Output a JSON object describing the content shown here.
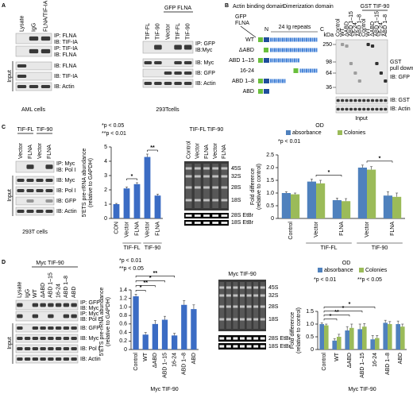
{
  "panel_a": {
    "letter": "A",
    "left": {
      "lanes": [
        "Lysate",
        "IgG",
        "FLNA/TIF-IA"
      ],
      "ip1": "IP: FLNA",
      "ib1": "IB: TIF-IA",
      "ip2": "IP: TIF-IA",
      "ib2": "IB: FLNA",
      "input": "Input",
      "input_rows": [
        "IB: FLNA",
        "IB: TIF-IA",
        "IB: Actin"
      ],
      "cells": "AML cells"
    },
    "right": {
      "header": "GFP FLNA",
      "lanes": [
        "TIF-FL",
        "TIF-90",
        "Vector",
        "TIF-FL",
        "TIF-90"
      ],
      "ip": "IP: GFP",
      "ib": "IB:Myc",
      "input_rows": [
        "IB: Myc",
        "IB: GFP",
        "IB: Actin"
      ],
      "cells": "293Tcells"
    }
  },
  "panel_b": {
    "letter": "B",
    "abd": "Actin binding domain",
    "dim": "Dimerization domain",
    "gfp": "GFP",
    "flna": "FLNA",
    "n": "N",
    "c": "C",
    "repeats": "24 Ig repeats",
    "constructs": [
      "WT",
      "ΔABD",
      "ABD 1–15",
      "16-24",
      "ABD 1–8",
      "ABD"
    ],
    "kda": "kDa",
    "header": "GST TIF-90",
    "lanes": [
      "Control",
      "WT",
      "ΔABD",
      "ABD 1–15",
      "16-24",
      "ABD 1–8",
      "Control",
      "WT",
      "ΔABD",
      "ABD 1–15",
      "16-24",
      "ABD 1–8"
    ],
    "markers": [
      250,
      98,
      64,
      36
    ],
    "pull": [
      "GST",
      "pull down",
      "IB: GFP"
    ],
    "input": "Input",
    "input_rows": [
      "IB: GST",
      "IB: Actin"
    ]
  },
  "panel_c": {
    "letter": "C",
    "blot": {
      "groups": [
        "TIF-FL",
        "TIF-90"
      ],
      "lanes": [
        "Vector",
        "FLNA",
        "Vector",
        "FLNA"
      ],
      "ip": "IP: Myc",
      "ib": "IB: Pol I",
      "input": "Input",
      "input_rows": [
        "IB: Myc",
        "IB: Pol I",
        "IB: GFP",
        "IB: Actin"
      ],
      "cells": "293T cells"
    },
    "chart": {
      "type": "bar",
      "notes": [
        "*p < 0.05",
        "**p < 0.01"
      ],
      "ylabel": [
        "5'ETS pre-rRNA abundance",
        "(relative to GAPDH)"
      ],
      "categories": [
        "CON",
        "Vector",
        "FLNA",
        "Vector",
        "FLNA"
      ],
      "groups": [
        "TIF-FL",
        "TIF-90"
      ],
      "values": [
        1.0,
        2.1,
        2.4,
        4.3,
        1.6
      ],
      "errors": [
        0.05,
        0.1,
        0.1,
        0.2,
        0.1
      ],
      "color": "#3b6cc4",
      "ylim": [
        0,
        5
      ],
      "yticks": [
        0,
        1,
        2,
        3,
        4,
        5
      ],
      "stars": [
        "*",
        "**"
      ]
    },
    "gel": {
      "groups": [
        "TIF-FL",
        "TIF-90"
      ],
      "lanes": [
        "Control",
        "Vector",
        "FLNA",
        "Vector",
        "FLNA"
      ],
      "bands": [
        "45S",
        "32S",
        "28S",
        "18S"
      ],
      "etbr": [
        "28S EtBr",
        "18S EtBr"
      ]
    },
    "chart2": {
      "type": "grouped_bar",
      "legend_title": "OD",
      "notes": [
        "*p < 0.01"
      ],
      "ylabel": [
        "Fold difference",
        "(relative to control)"
      ],
      "categories": [
        "Control",
        "Vector",
        "FLNA",
        "Vector",
        "FLNA"
      ],
      "groups": [
        "TIF-FL",
        "TIF-90"
      ],
      "series": [
        {
          "name": "absorbance",
          "color": "#4f81bd",
          "values": [
            1.0,
            1.45,
            0.72,
            2.0,
            0.9
          ],
          "errors": [
            0.05,
            0.1,
            0.08,
            0.1,
            0.15
          ]
        },
        {
          "name": "Colonies",
          "color": "#9bbb59",
          "values": [
            0.95,
            1.38,
            0.68,
            1.92,
            0.85
          ],
          "errors": [
            0.05,
            0.12,
            0.1,
            0.12,
            0.15
          ]
        }
      ],
      "ylim": [
        0,
        2.5
      ],
      "yticks": [
        0,
        0.5,
        {
          "value": 1,
          "label": "1.0"
        },
        1.5,
        {
          "value": 2,
          "label": "2.0"
        },
        2.5
      ],
      "stars": [
        "*",
        "*"
      ]
    }
  },
  "panel_d": {
    "letter": "D",
    "blot": {
      "header": "Myc TIF-90",
      "lanes": [
        "Lysate",
        "IgG",
        "WT",
        "ΔABD",
        "ABD 1–15",
        "16-24",
        "ABD 1–8",
        "ABD"
      ],
      "ip1": "IP: GFP",
      "ib1": "IB: Myc",
      "ip2": "IP: Myc",
      "ib2": "IB: Pol I",
      "input": "Input",
      "input_rows": [
        "IB: GFP",
        "IB: Myc",
        "IB: Pol I",
        "IB: Actin"
      ]
    },
    "chart": {
      "type": "bar",
      "notes": [
        "*p < 0.01",
        "**p < 0.05"
      ],
      "ylabel": [
        "5'ETS pre-rRNA abundance",
        "(relative to GAPDH)"
      ],
      "categories": [
        "Control",
        "WT",
        "ΔABD",
        "ABD 1–15",
        "16-24",
        "ABD 1–8",
        "ABD"
      ],
      "group": "Myc TIF-90",
      "values": [
        1.25,
        0.35,
        0.6,
        0.7,
        0.33,
        1.05,
        0.95
      ],
      "errors": [
        0.05,
        0.05,
        0.08,
        0.08,
        0.05,
        0.1,
        0.1
      ],
      "color": "#3b6cc4",
      "ylim": [
        0,
        1.4
      ],
      "yticks": [
        0,
        0.2,
        0.4,
        0.6,
        0.8,
        {
          "value": 1,
          "label": "1.0"
        },
        1.2,
        1.4
      ],
      "stars": [
        "*",
        "**",
        "*",
        "**"
      ]
    },
    "gel": {
      "header": "Myc TIF-90",
      "bands": [
        "45S",
        "32S",
        "28S",
        "18S"
      ],
      "etbr": [
        "28S EtBr",
        "18S EtBr"
      ]
    },
    "chart2": {
      "type": "grouped_bar",
      "legend_title": "OD",
      "notes": [
        "*p < 0.01",
        "**p < 0.05"
      ],
      "ylabel": [
        "Fold difference",
        "(relative to control)"
      ],
      "categories": [
        "Control",
        "WT",
        "ΔABD",
        "ABD 1–15",
        "16-24",
        "ABD 1–8",
        "ABD"
      ],
      "group": "Myc TIF-90",
      "series": [
        {
          "name": "absorbance",
          "color": "#4f81bd",
          "values": [
            1.0,
            0.35,
            0.75,
            0.8,
            0.4,
            1.05,
            1.0
          ],
          "errors": [
            0.05,
            0.08,
            0.15,
            0.2,
            0.15,
            0.1,
            0.12
          ]
        },
        {
          "name": "Colonies",
          "color": "#9bbb59",
          "values": [
            0.95,
            0.5,
            0.85,
            0.9,
            0.45,
            1.0,
            0.9
          ],
          "errors": [
            0.05,
            0.1,
            0.15,
            0.12,
            0.1,
            0.1,
            0.1
          ]
        }
      ],
      "ylim": [
        0,
        1.5
      ],
      "yticks": [
        0,
        0.5,
        {
          "value": 1,
          "label": "1.0"
        },
        1.5
      ],
      "stars": [
        "*",
        "**",
        "*",
        "*"
      ]
    }
  }
}
